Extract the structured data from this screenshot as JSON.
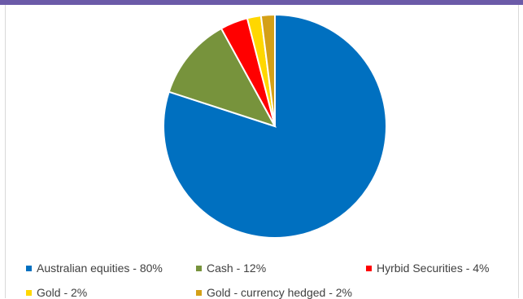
{
  "chart_data": {
    "type": "pie",
    "title": "",
    "categories": [
      "Australian equities - 80%",
      "Cash - 12%",
      "Hyrbid Securities - 4%",
      "Gold - 2%",
      "Gold - currency hedged - 2%"
    ],
    "values": [
      80,
      12,
      4,
      2,
      2
    ],
    "colors": [
      "#0070c0",
      "#77933c",
      "#ff0000",
      "#ffd700",
      "#d4a017"
    ],
    "legend_position": "bottom"
  }
}
